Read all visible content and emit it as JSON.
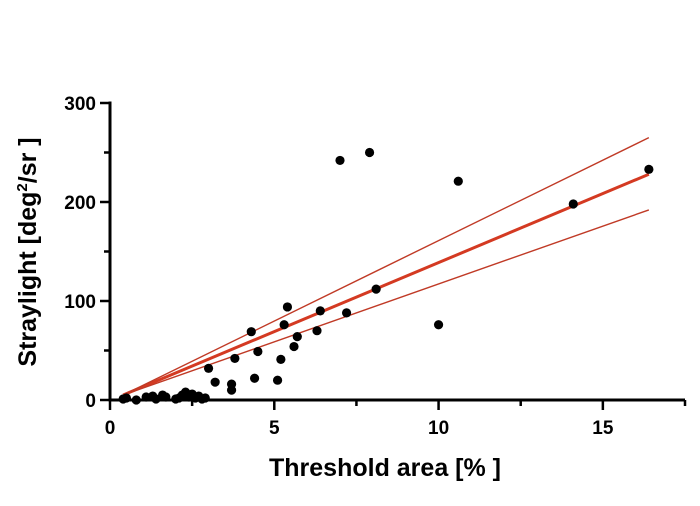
{
  "chart_data": {
    "type": "scatter",
    "title": "",
    "xlabel": "Threshold area [% ]",
    "ylabel_main": "Straylight [deg",
    "ylabel_sup": "2",
    "ylabel_end": "/sr ]",
    "xlim": [
      0,
      17.5
    ],
    "ylim": [
      0,
      300
    ],
    "x_ticks": [
      0,
      5,
      10,
      15
    ],
    "x_tick_labels": [
      "0",
      "5",
      "10",
      "15"
    ],
    "y_ticks": [
      0,
      100,
      200,
      300
    ],
    "y_tick_labels": [
      "0",
      "100",
      "200",
      "300"
    ],
    "grid": false,
    "legend": "none",
    "colors": {
      "points": "#000000",
      "fit": "#d43a22",
      "ci": "#c03a26"
    },
    "points": [
      [
        0.4,
        1
      ],
      [
        0.5,
        2
      ],
      [
        0.8,
        0
      ],
      [
        1.1,
        3
      ],
      [
        1.3,
        4
      ],
      [
        1.4,
        1
      ],
      [
        1.6,
        5
      ],
      [
        1.7,
        3
      ],
      [
        2.0,
        1
      ],
      [
        2.1,
        2
      ],
      [
        2.2,
        5
      ],
      [
        2.3,
        8
      ],
      [
        2.4,
        3
      ],
      [
        2.5,
        6
      ],
      [
        2.6,
        2
      ],
      [
        2.7,
        4
      ],
      [
        2.8,
        1
      ],
      [
        2.9,
        2
      ],
      [
        3.0,
        32
      ],
      [
        3.2,
        18
      ],
      [
        3.7,
        16
      ],
      [
        3.7,
        10
      ],
      [
        3.8,
        42
      ],
      [
        4.3,
        69
      ],
      [
        4.4,
        22
      ],
      [
        4.5,
        49
      ],
      [
        5.1,
        20
      ],
      [
        5.2,
        41
      ],
      [
        5.3,
        76
      ],
      [
        5.4,
        94
      ],
      [
        5.6,
        54
      ],
      [
        5.7,
        64
      ],
      [
        6.3,
        70
      ],
      [
        6.4,
        90
      ],
      [
        7.0,
        242
      ],
      [
        7.2,
        88
      ],
      [
        7.9,
        250
      ],
      [
        8.1,
        112
      ],
      [
        10.0,
        76
      ],
      [
        10.6,
        221
      ],
      [
        14.1,
        198
      ],
      [
        16.4,
        233
      ]
    ],
    "series": [
      {
        "kind": "fit",
        "x": [
          0.4,
          16.4
        ],
        "values": [
          5,
          228
        ]
      },
      {
        "kind": "ci-upper",
        "x": [
          0.4,
          16.4
        ],
        "values": [
          5,
          265
        ]
      },
      {
        "kind": "ci-lower",
        "x": [
          0.4,
          16.4
        ],
        "values": [
          5,
          192
        ]
      }
    ]
  }
}
